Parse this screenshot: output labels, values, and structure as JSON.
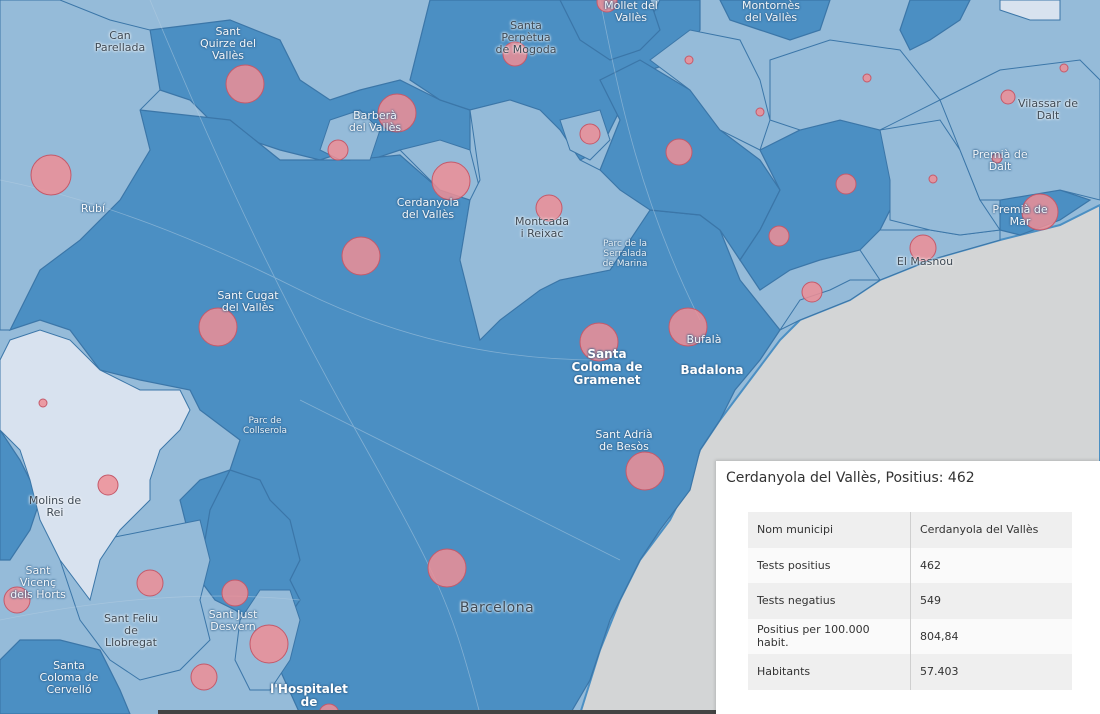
{
  "map": {
    "colors": {
      "dark_region": "#4b8fc3",
      "mid_region": "#95bbd9",
      "light_region": "#d8e2ef",
      "sea": "#d3d5d6",
      "circle": "#ee8e95",
      "circle_stroke": "#c4596a"
    },
    "labels": {
      "can_parellada": "Can\nParellada",
      "sant_quirze": "Sant\nQuirze del\nVallès",
      "santa_perpetua": "Santa\nPerpètua\nde Mogoda",
      "mollet": "Mollet del\nVallès",
      "montornes": "Montornès\ndel Vallès",
      "barbera": "Barberà\ndel Vallès",
      "vilassar": "Vilassar de\nDalt",
      "premia_dalt": "Premià de\nDalt",
      "premia_mar": "Premià de\nMar",
      "rubi": "Rubí",
      "cerdanyola": "Cerdanyola\ndel Vallès",
      "montcada": "Montcada\ni Reixac",
      "parc_serralada": "Parc de la\nSerralada\nde Marina",
      "el_masnou": "El Masnou",
      "sant_cugat": "Sant Cugat\ndel Vallès",
      "santa_coloma": "Santa\nColoma de\nGramenet",
      "bufala": "Bufalà",
      "badalona": "Badalona",
      "parc_collserola": "Parc de\nCollserola",
      "sant_adria": "Sant Adrià\nde Besòs",
      "molins": "Molins de\nRei",
      "sant_vicenc": "Sant\nVicenç\ndels Horts",
      "sant_feliu": "Sant Feliu\nde\nLlobregat",
      "sant_just": "Sant Just\nDesvern",
      "barcelona": "Barcelona",
      "santa_coloma_cervello": "Santa\nColoma de\nCervelló",
      "hospitalet": "l'Hospitalet\nde"
    }
  },
  "popup": {
    "title": "Cerdanyola del Vallès, Positius: 462",
    "rows": [
      {
        "key": "Nom municipi",
        "value": "Cerdanyola del Vallès"
      },
      {
        "key": "Tests positius",
        "value": "462"
      },
      {
        "key": "Tests negatius",
        "value": "549"
      },
      {
        "key": "Positius per 100.000 habit.",
        "value": "804,84"
      },
      {
        "key": "Habitants",
        "value": "57.403"
      }
    ]
  }
}
